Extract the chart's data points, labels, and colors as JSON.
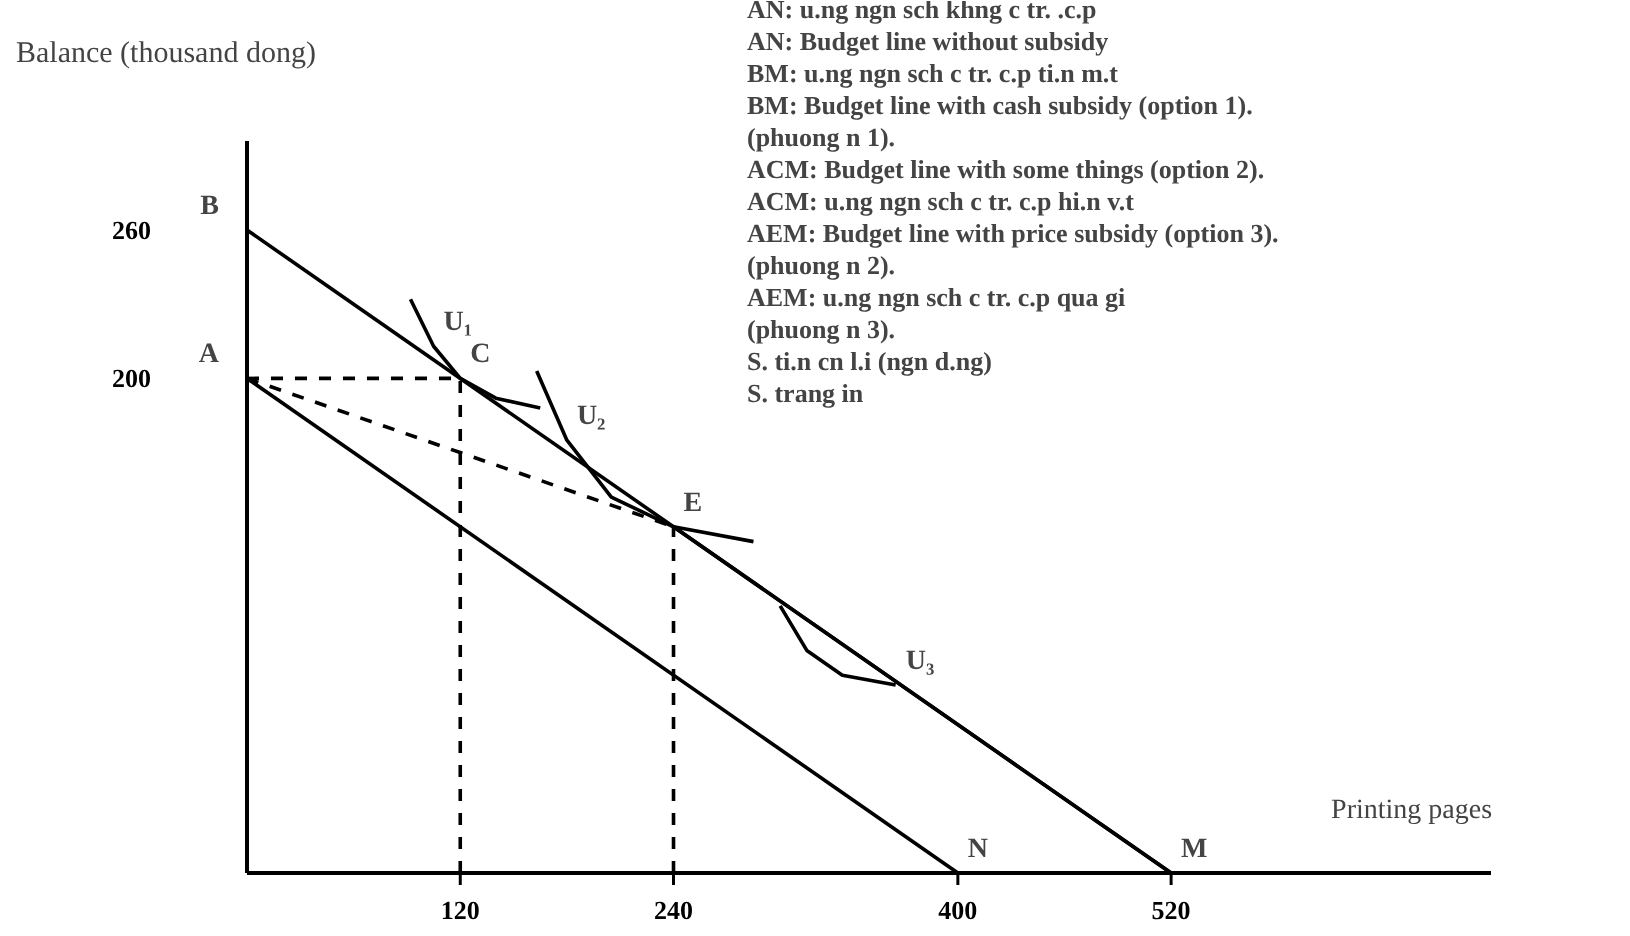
{
  "chart_data": {
    "type": "line",
    "ylabel": "Balance (thousand dong)",
    "xlabel": "Printing pages",
    "xlim": [
      0,
      700
    ],
    "ylim": [
      0,
      296
    ],
    "xticks": [
      120,
      240,
      400,
      520
    ],
    "yticks": [
      200,
      260
    ],
    "grid": false,
    "marker": "none",
    "series": [
      {
        "color": "#000000",
        "x": [
          0,
          400
        ],
        "values": [
          200,
          0
        ],
        "line_style": "solid"
      },
      {
        "color": "#000000",
        "x": [
          0,
          520
        ],
        "values": [
          260,
          0
        ],
        "line_style": "solid"
      },
      {
        "color": "#000000",
        "x": [
          0,
          120
        ],
        "values": [
          200,
          200
        ],
        "line_style": "dashed"
      },
      {
        "color": "#000000",
        "x": [
          0,
          240
        ],
        "values": [
          200,
          140
        ],
        "line_style": "dashed"
      },
      {
        "color": "#000000",
        "x": [
          240,
          520
        ],
        "values": [
          140,
          0
        ],
        "line_style": "solid"
      },
      {
        "color": "#000000",
        "x": [
          120,
          120
        ],
        "values": [
          0,
          200
        ],
        "line_style": "dashed"
      },
      {
        "color": "#000000",
        "x": [
          240,
          240
        ],
        "values": [
          0,
          140
        ],
        "line_style": "dashed"
      },
      {
        "color": "#000000",
        "x": [
          92,
          105,
          120,
          140,
          165
        ],
        "values": [
          232,
          213,
          200,
          192,
          188
        ],
        "line_style": "solid"
      },
      {
        "color": "#000000",
        "x": [
          163,
          180,
          205,
          240,
          285
        ],
        "values": [
          203,
          175,
          152,
          140,
          134
        ],
        "line_style": "solid"
      },
      {
        "color": "#000000",
        "x": [
          300,
          315,
          335,
          365
        ],
        "values": [
          108,
          90,
          80,
          76
        ],
        "line_style": "solid"
      }
    ],
    "annotations": [
      {
        "text": "B",
        "x": 0,
        "y": 260
      },
      {
        "text": "A",
        "x": 0,
        "y": 200
      },
      {
        "text": "C",
        "x": 120,
        "y": 200
      },
      {
        "text": "E",
        "x": 240,
        "y": 140
      },
      {
        "text": "N",
        "x": 400,
        "y": 0
      },
      {
        "text": "M",
        "x": 520,
        "y": 0
      },
      {
        "text": "U₁",
        "x": 105,
        "y": 213
      },
      {
        "text": "U₂",
        "x": 180,
        "y": 175
      },
      {
        "text": "U₃",
        "x": 365,
        "y": 76
      },
      "AN: u.ng ngn sch khng c tr. .c.p",
      "AN: Budget line without subsidy",
      "BM: u.ng ngn sch c tr. c.p ti.n m.t",
      "BM: Budget line with cash subsidy (option 1).",
      "(phuong n 1).",
      "ACM: Budget line with some things (option 2).",
      "ACM: u.ng ngn sch c tr. c.p hi.n v.t",
      "AEM: Budget line with price subsidy (option 3).",
      "(phuong n 2).",
      "AEM: u.ng ngn sch c tr. c.p qua gi",
      "(phuong n 3).",
      "S. ti.n cn l.i (ngn d.ng)",
      "S. trang in"
    ]
  }
}
